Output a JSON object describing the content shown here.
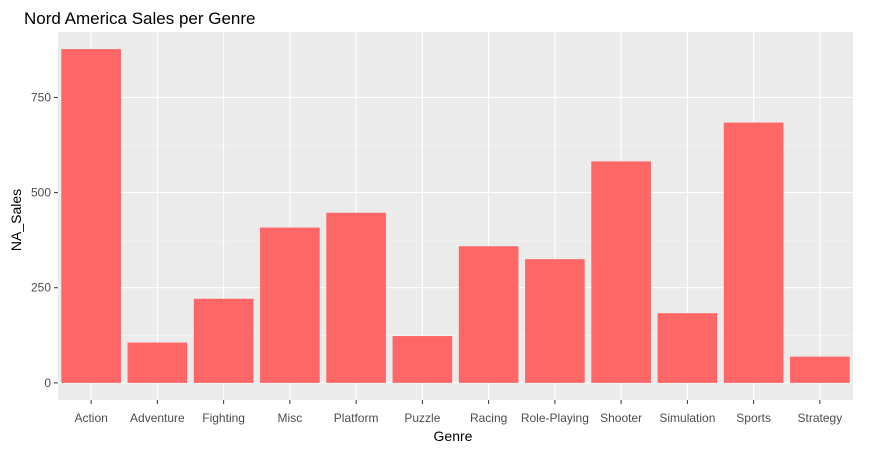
{
  "chart_data": {
    "type": "bar",
    "title": "Nord America Sales per Genre",
    "xlabel": "Genre",
    "ylabel": "NA_Sales",
    "categories": [
      "Action",
      "Adventure",
      "Fighting",
      "Misc",
      "Platform",
      "Puzzle",
      "Racing",
      "Role-Playing",
      "Shooter",
      "Simulation",
      "Sports",
      "Strategy"
    ],
    "values": [
      877,
      106,
      221,
      408,
      447,
      123,
      359,
      325,
      582,
      183,
      684,
      69
    ],
    "ylim": [
      -45,
      922
    ],
    "yticks": [
      0,
      250,
      500,
      750
    ],
    "grid": true,
    "legend": "none",
    "colors": {
      "bar": "#ff6666",
      "panel_bg": "#ebebeb",
      "grid_major": "#ffffff",
      "grid_minor": "#f5f5f5"
    }
  }
}
